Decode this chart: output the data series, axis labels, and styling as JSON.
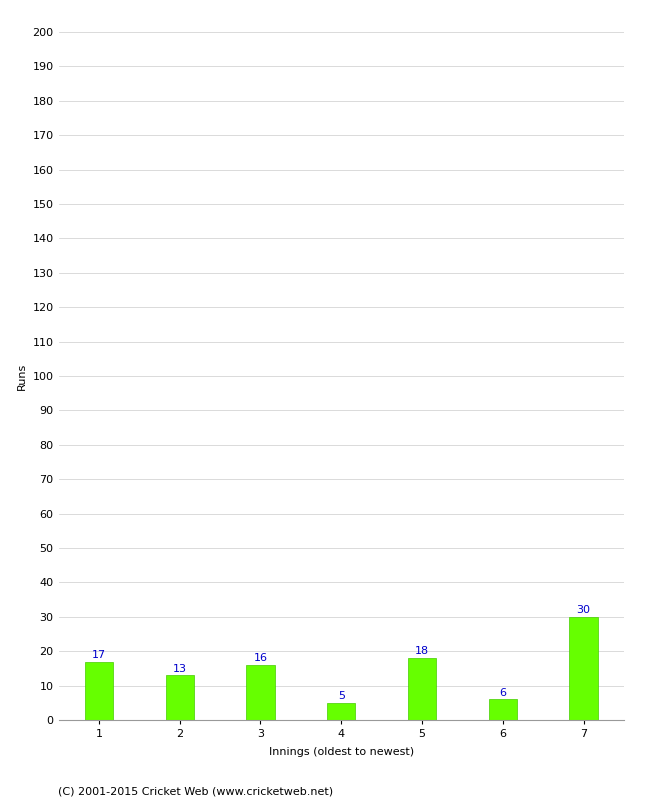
{
  "innings": [
    1,
    2,
    3,
    4,
    5,
    6,
    7
  ],
  "runs": [
    17,
    13,
    16,
    5,
    18,
    6,
    30
  ],
  "bar_color": "#66ff00",
  "bar_edge_color": "#44cc00",
  "xlabel": "Innings (oldest to newest)",
  "ylabel": "Runs",
  "ylim": [
    0,
    200
  ],
  "ytick_step": 10,
  "label_color": "#0000cc",
  "label_fontsize": 8,
  "axis_fontsize": 8,
  "tick_fontsize": 8,
  "footer": "(C) 2001-2015 Cricket Web (www.cricketweb.net)",
  "footer_fontsize": 8,
  "background_color": "#ffffff",
  "grid_color": "#cccccc",
  "bar_width": 0.35
}
